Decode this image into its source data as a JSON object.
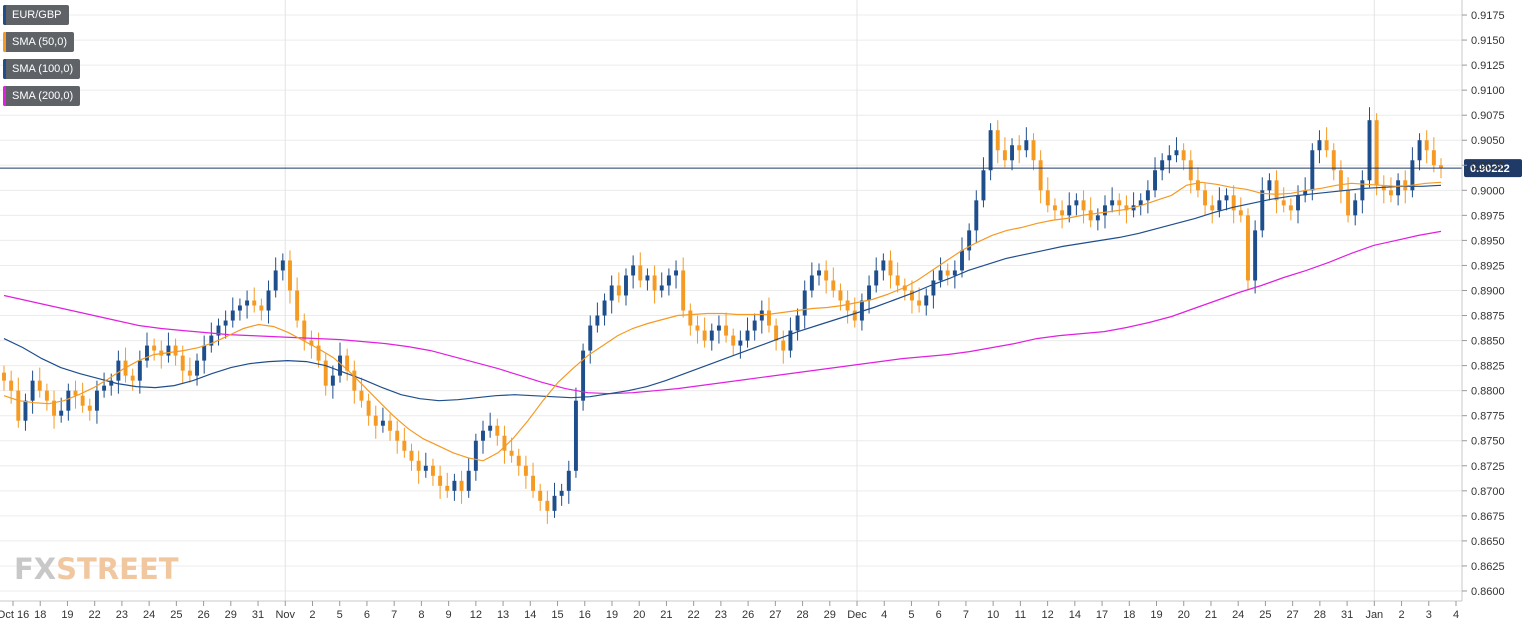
{
  "chart_data": {
    "type": "candlestick",
    "symbol": "EUR/GBP",
    "ylim": [
      0.859,
      0.919
    ],
    "grid": true,
    "legend_position": "top-left",
    "y_ticks": [
      "0.9175",
      "0.9150",
      "0.9125",
      "0.9100",
      "0.9075",
      "0.9050",
      "0.9025",
      "0.9000",
      "0.8975",
      "0.8950",
      "0.8925",
      "0.8900",
      "0.8875",
      "0.8850",
      "0.8825",
      "0.8800",
      "0.8775",
      "0.8750",
      "0.8725",
      "0.8700",
      "0.8675",
      "0.8650",
      "0.8625",
      "0.8600"
    ],
    "x_ticks": [
      "Oct 16",
      "18",
      "19",
      "22",
      "23",
      "24",
      "25",
      "26",
      "29",
      "31",
      "Nov",
      "2",
      "5",
      "6",
      "7",
      "8",
      "9",
      "12",
      "13",
      "14",
      "15",
      "16",
      "19",
      "20",
      "21",
      "22",
      "23",
      "26",
      "27",
      "28",
      "29",
      "Dec",
      "4",
      "5",
      "6",
      "7",
      "10",
      "11",
      "12",
      "14",
      "17",
      "18",
      "19",
      "20",
      "21",
      "24",
      "25",
      "27",
      "28",
      "31",
      "Jan",
      "2",
      "3",
      "4"
    ],
    "current_price": "0.90222",
    "legend": [
      {
        "label": "EUR/GBP",
        "color": "#1f4e8c"
      },
      {
        "label": "SMA (50,0)",
        "color": "#f59a23"
      },
      {
        "label": "SMA (100,0)",
        "color": "#1f4e8c"
      },
      {
        "label": "SMA (200,0)",
        "color": "#e020e0"
      }
    ],
    "colors": {
      "up": "#1f4e8c",
      "down": "#f59a23",
      "sma50": "#f59a23",
      "sma100": "#1f4e8c",
      "sma200": "#e020e0",
      "price_line": "#1f3a66"
    },
    "closes": [
      0.881,
      0.88,
      0.877,
      0.879,
      0.881,
      0.88,
      0.879,
      0.8775,
      0.878,
      0.88,
      0.8795,
      0.8785,
      0.878,
      0.88,
      0.8805,
      0.881,
      0.883,
      0.8815,
      0.881,
      0.883,
      0.8845,
      0.884,
      0.8835,
      0.8845,
      0.8835,
      0.882,
      0.8815,
      0.883,
      0.8845,
      0.8855,
      0.8865,
      0.887,
      0.888,
      0.8885,
      0.889,
      0.8885,
      0.888,
      0.89,
      0.892,
      0.893,
      0.89,
      0.887,
      0.885,
      0.8845,
      0.883,
      0.8805,
      0.8815,
      0.8835,
      0.882,
      0.88,
      0.879,
      0.8775,
      0.8765,
      0.877,
      0.876,
      0.875,
      0.874,
      0.873,
      0.872,
      0.8725,
      0.8715,
      0.8705,
      0.87,
      0.871,
      0.87,
      0.872,
      0.875,
      0.876,
      0.8765,
      0.8755,
      0.874,
      0.8735,
      0.8725,
      0.8715,
      0.87,
      0.869,
      0.868,
      0.8695,
      0.87,
      0.872,
      0.879,
      0.884,
      0.8865,
      0.8875,
      0.889,
      0.8905,
      0.8895,
      0.8915,
      0.8925,
      0.891,
      0.8915,
      0.89,
      0.8905,
      0.8915,
      0.892,
      0.888,
      0.8865,
      0.886,
      0.885,
      0.886,
      0.8865,
      0.8855,
      0.8845,
      0.885,
      0.886,
      0.887,
      0.888,
      0.8865,
      0.885,
      0.884,
      0.886,
      0.8875,
      0.89,
      0.8915,
      0.892,
      0.891,
      0.89,
      0.889,
      0.888,
      0.887,
      0.889,
      0.8905,
      0.892,
      0.893,
      0.8915,
      0.8905,
      0.89,
      0.889,
      0.8885,
      0.8895,
      0.891,
      0.892,
      0.8915,
      0.892,
      0.894,
      0.896,
      0.899,
      0.902,
      0.906,
      0.904,
      0.903,
      0.9045,
      0.904,
      0.905,
      0.903,
      0.9,
      0.8985,
      0.898,
      0.8975,
      0.8985,
      0.899,
      0.898,
      0.897,
      0.8975,
      0.8985,
      0.899,
      0.8985,
      0.898,
      0.8985,
      0.899,
      0.9,
      0.902,
      0.903,
      0.9035,
      0.904,
      0.903,
      0.901,
      0.9,
      0.8985,
      0.898,
      0.899,
      0.8995,
      0.898,
      0.8975,
      0.891,
      0.896,
      0.9,
      0.901,
      0.899,
      0.8985,
      0.898,
      0.8995,
      0.9,
      0.904,
      0.905,
      0.904,
      0.902,
      0.9,
      0.8975,
      0.899,
      0.901,
      0.907,
      0.9005,
      0.9,
      0.8995,
      0.901,
      0.9,
      0.903,
      0.905,
      0.904,
      0.9025,
      0.9022
    ],
    "sma50": [
      0.8795,
      0.879,
      0.8788,
      0.8787,
      0.879,
      0.8796,
      0.8803,
      0.8812,
      0.8822,
      0.883,
      0.8836,
      0.8838,
      0.884,
      0.8843,
      0.8848,
      0.8855,
      0.8862,
      0.8866,
      0.8864,
      0.8858,
      0.885,
      0.8842,
      0.8833,
      0.882,
      0.8805,
      0.879,
      0.8775,
      0.8762,
      0.8752,
      0.8745,
      0.8738,
      0.8733,
      0.873,
      0.8738,
      0.8752,
      0.877,
      0.879,
      0.8808,
      0.8822,
      0.8835,
      0.8845,
      0.8855,
      0.8862,
      0.8867,
      0.8871,
      0.8875,
      0.8876,
      0.8877,
      0.8877,
      0.8876,
      0.8876,
      0.8876,
      0.8878,
      0.888,
      0.8882,
      0.8883,
      0.8885,
      0.8888,
      0.8891,
      0.8896,
      0.8902,
      0.891,
      0.892,
      0.893,
      0.894,
      0.8948,
      0.8955,
      0.896,
      0.8963,
      0.8967,
      0.897,
      0.8972,
      0.8975,
      0.8977,
      0.8979,
      0.8981,
      0.8985,
      0.899,
      0.8995,
      0.9005,
      0.9008,
      0.9006,
      0.9003,
      0.9001,
      0.8997,
      0.8996,
      0.8997,
      0.9,
      0.9002,
      0.9005,
      0.9007,
      0.9006,
      0.9005,
      0.9004,
      0.9005,
      0.9007,
      0.9008
    ],
    "sma100": [
      0.8852,
      0.8843,
      0.8832,
      0.8823,
      0.8817,
      0.8812,
      0.8807,
      0.8804,
      0.8803,
      0.8805,
      0.881,
      0.8817,
      0.8823,
      0.8827,
      0.8829,
      0.883,
      0.8829,
      0.8825,
      0.8818,
      0.8811,
      0.8803,
      0.8796,
      0.8792,
      0.879,
      0.8791,
      0.8793,
      0.8795,
      0.8796,
      0.8795,
      0.8794,
      0.8793,
      0.8794,
      0.8797,
      0.88,
      0.8804,
      0.881,
      0.8817,
      0.8824,
      0.8831,
      0.8838,
      0.8845,
      0.8852,
      0.8859,
      0.8865,
      0.8871,
      0.8877,
      0.8883,
      0.889,
      0.8897,
      0.8905,
      0.8912,
      0.892,
      0.8926,
      0.8932,
      0.8936,
      0.894,
      0.8944,
      0.8947,
      0.895,
      0.8953,
      0.8957,
      0.8962,
      0.8967,
      0.8972,
      0.8978,
      0.8983,
      0.8987,
      0.8991,
      0.8994,
      0.8996,
      0.8998,
      0.9,
      0.9002,
      0.9003,
      0.9004,
      0.9004,
      0.9005
    ],
    "sma200": [
      0.8895,
      0.889,
      0.8885,
      0.888,
      0.8875,
      0.887,
      0.8865,
      0.8862,
      0.886,
      0.8858,
      0.8856,
      0.8855,
      0.8854,
      0.8853,
      0.8852,
      0.8851,
      0.8849,
      0.8847,
      0.8844,
      0.884,
      0.8834,
      0.8828,
      0.8822,
      0.8815,
      0.8808,
      0.8802,
      0.8798,
      0.8797,
      0.8798,
      0.88,
      0.8802,
      0.8805,
      0.8808,
      0.8811,
      0.8814,
      0.8817,
      0.882,
      0.8823,
      0.8826,
      0.8829,
      0.8832,
      0.8834,
      0.8836,
      0.8839,
      0.8843,
      0.8847,
      0.8852,
      0.8855,
      0.8857,
      0.8859,
      0.8863,
      0.8868,
      0.8874,
      0.8882,
      0.889,
      0.8898,
      0.8905,
      0.8913,
      0.892,
      0.8928,
      0.8937,
      0.8945,
      0.895,
      0.8955,
      0.8959
    ]
  },
  "watermark": {
    "part1": "FX",
    "part2": "STREET"
  }
}
